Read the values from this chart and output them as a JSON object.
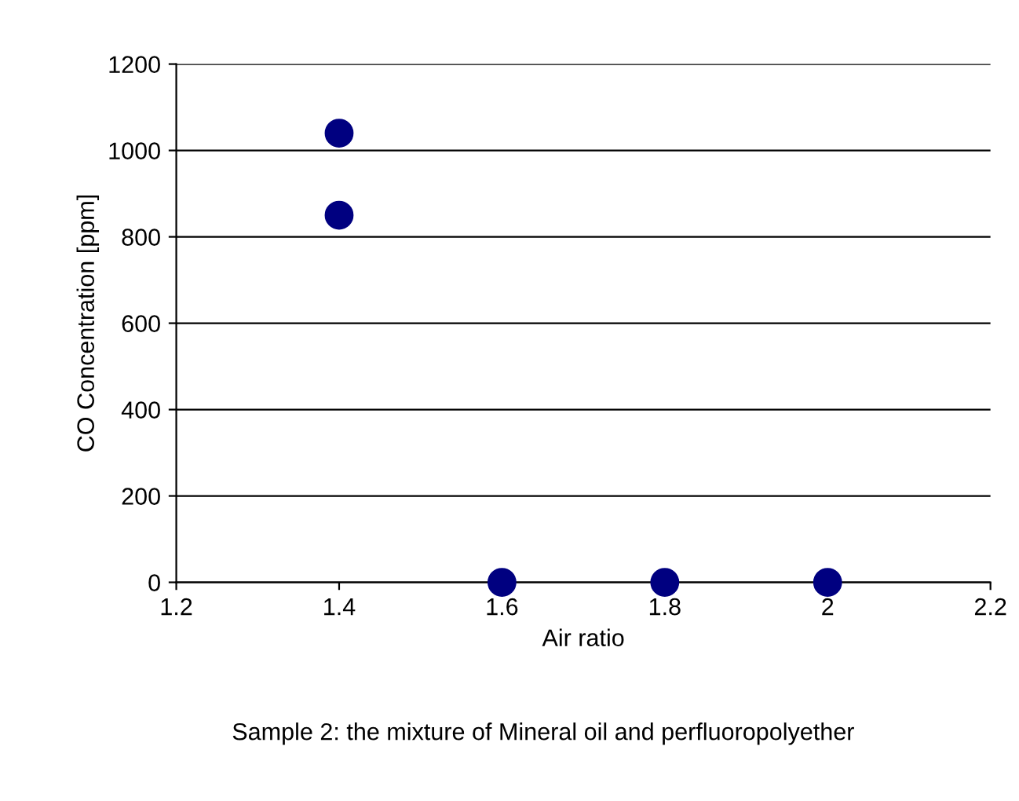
{
  "chart_data": {
    "type": "scatter",
    "xlabel": "Air ratio",
    "ylabel": "CO Concentration [ppm]",
    "annotations": [
      "Sample 2: the mixture of Mineral oil and perfluoropolyether"
    ],
    "series": [
      {
        "color": "#000080",
        "x": [
          1.4,
          1.4,
          1.6,
          1.8,
          2
        ],
        "values": [
          1040,
          850,
          0,
          0,
          0
        ]
      }
    ],
    "xlim": [
      1.2,
      2.2
    ],
    "xticks": [
      1.2,
      1.4,
      1.6,
      1.8,
      2,
      2.2
    ],
    "ylim": [
      0,
      1200
    ],
    "yticks": [
      0,
      200,
      400,
      600,
      800,
      1000,
      1200
    ],
    "grid": "y",
    "marker": "circle",
    "legend": false
  }
}
